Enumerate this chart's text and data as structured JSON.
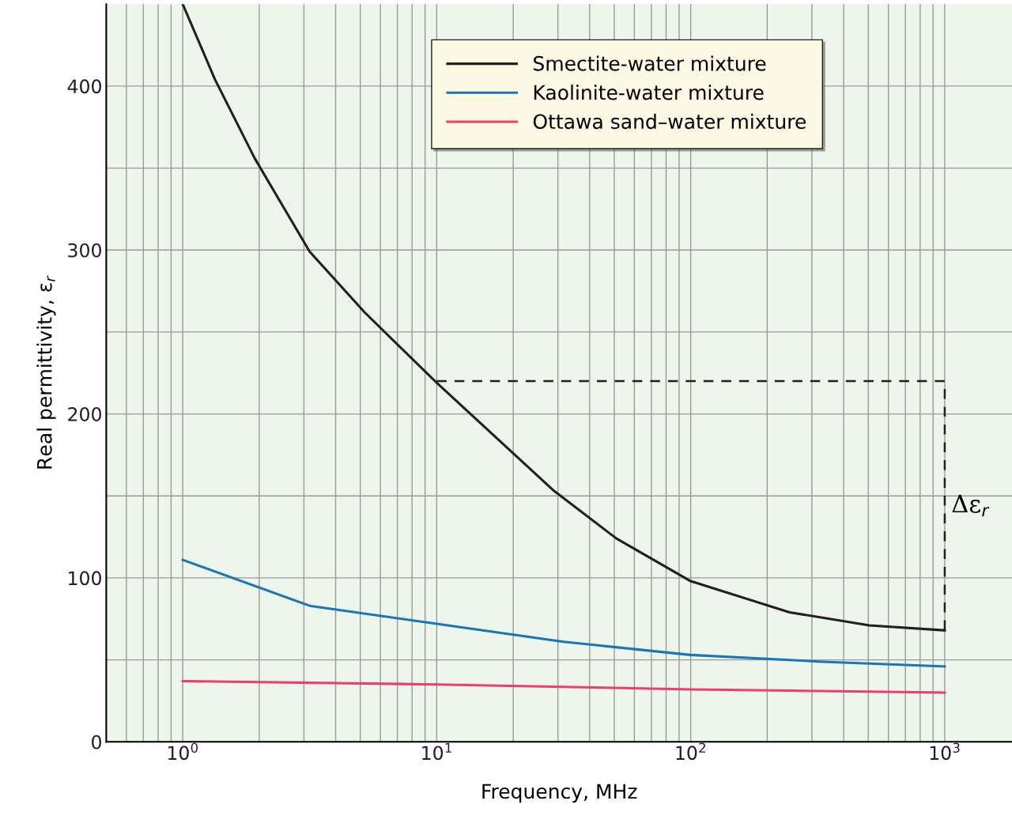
{
  "chart_data": {
    "type": "line",
    "xlabel": "Frequency, MHz",
    "ylabel": "Real permittivity, ε$_{r}$",
    "log": "x",
    "xlim": [
      0.5,
      1840
    ],
    "ylim": [
      0,
      450
    ],
    "xticks": [
      {
        "value": 1,
        "label": "10$^{0}$"
      },
      {
        "value": 10,
        "label": "10$^{1}$"
      },
      {
        "value": 100,
        "label": "10$^{2}$"
      },
      {
        "value": 1000,
        "label": "10$^{3}$"
      }
    ],
    "yticks": [
      0,
      {
        "value": 50,
        "label": null
      },
      100,
      {
        "value": 150,
        "label": null
      },
      200,
      {
        "value": 250,
        "label": null
      },
      300,
      {
        "value": 350,
        "label": null
      },
      400
    ],
    "grid": true,
    "legend": "top",
    "marker": "none",
    "series": [
      {
        "name": "Smectite-water mixture",
        "color": "#231f20",
        "x": [
          1,
          1.34,
          1.92,
          3.16,
          5.2,
          10,
          29,
          51,
          100,
          245,
          505,
          1000
        ],
        "values": [
          450,
          404,
          356,
          299,
          262,
          219,
          153,
          124,
          98,
          79,
          71,
          68
        ]
      },
      {
        "name": "Kaolinite-water mixture",
        "color": "#1a75bb",
        "x": [
          1,
          3.16,
          10,
          31.6,
          100,
          316,
          1000
        ],
        "values": [
          111,
          83,
          72,
          61,
          53,
          49,
          46
        ]
      },
      {
        "name": "Ottawa sand–water mixture",
        "color": "#ee3e6b",
        "x": [
          1,
          10,
          100,
          1000
        ],
        "values": [
          37,
          35,
          32,
          30
        ]
      },
      {
        "color": "#231f20",
        "line_style": "dashed",
        "x": [
          10,
          1000,
          1000
        ],
        "values": [
          220,
          220,
          68
        ]
      }
    ],
    "annotations": [
      {
        "text": "Δε$_{r}$",
        "x": 1000,
        "y": 144
      }
    ]
  }
}
